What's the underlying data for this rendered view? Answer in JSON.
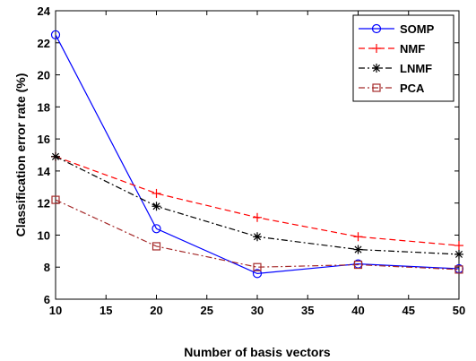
{
  "chart_data": {
    "type": "line",
    "title": "",
    "xlabel": "Number of basis vectors",
    "ylabel": "Classification error rate (%)",
    "xlim": [
      10,
      50
    ],
    "ylim": [
      6,
      24
    ],
    "xticks": [
      10,
      15,
      20,
      25,
      30,
      35,
      40,
      45,
      50
    ],
    "yticks": [
      6,
      8,
      10,
      12,
      14,
      16,
      18,
      20,
      22,
      24
    ],
    "grid": false,
    "legend_position": "top-right",
    "series": [
      {
        "name": "SOMP",
        "x": [
          10,
          20,
          30,
          40,
          50
        ],
        "values": [
          22.5,
          10.4,
          7.6,
          8.2,
          7.9
        ],
        "color": "#0000ff",
        "line_style": "solid",
        "marker": "circle"
      },
      {
        "name": "NMF",
        "x": [
          10,
          20,
          30,
          40,
          50
        ],
        "values": [
          14.9,
          12.6,
          11.1,
          9.9,
          9.35
        ],
        "color": "#ff0000",
        "line_style": "dashed",
        "marker": "plus"
      },
      {
        "name": "LNMF",
        "x": [
          10,
          20,
          30,
          40,
          50
        ],
        "values": [
          14.9,
          11.8,
          9.9,
          9.1,
          8.8
        ],
        "color": "#000000",
        "line_style": "dashdot",
        "marker": "star"
      },
      {
        "name": "PCA",
        "x": [
          10,
          20,
          30,
          40,
          50
        ],
        "values": [
          12.2,
          9.3,
          8.0,
          8.15,
          7.85
        ],
        "color": "#a52a2a",
        "line_style": "dashdot",
        "marker": "square"
      }
    ]
  }
}
